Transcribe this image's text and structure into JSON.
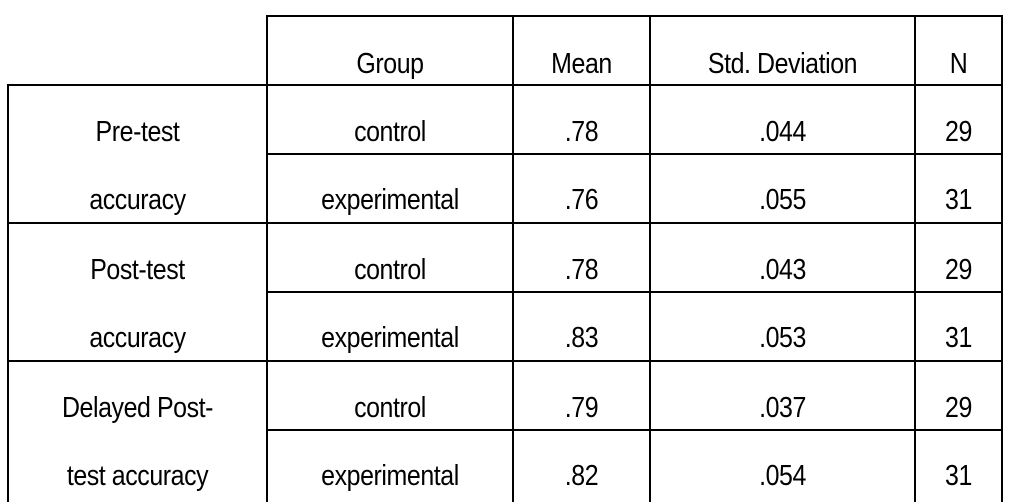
{
  "table": {
    "headers": [
      "",
      "Group",
      "Mean",
      "Std. Deviation",
      "N"
    ],
    "blocks": [
      {
        "label_line1": "Pre-test",
        "label_line2": "accuracy",
        "rows": [
          {
            "group": "control",
            "mean": ".78",
            "sd": ".044",
            "n": "29"
          },
          {
            "group": "experimental",
            "mean": ".76",
            "sd": ".055",
            "n": "31"
          }
        ]
      },
      {
        "label_line1": "Post-test",
        "label_line2": "accuracy",
        "rows": [
          {
            "group": "control",
            "mean": ".78",
            "sd": ".043",
            "n": "29"
          },
          {
            "group": "experimental",
            "mean": ".83",
            "sd": ".053",
            "n": "31"
          }
        ]
      },
      {
        "label_line1": "Delayed Post-",
        "label_line2": "test accuracy",
        "rows": [
          {
            "group": "control",
            "mean": ".79",
            "sd": ".037",
            "n": "29"
          },
          {
            "group": "experimental",
            "mean": ".82",
            "sd": ".054",
            "n": "31"
          }
        ]
      }
    ]
  }
}
